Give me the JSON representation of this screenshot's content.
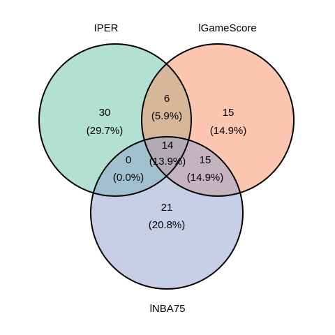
{
  "sets": [
    {
      "name": "IPER",
      "color": "#66c2a5"
    },
    {
      "name": "lGameScore",
      "color": "#fc8d62"
    },
    {
      "name": "lNBA75",
      "color": "#8da0cb"
    }
  ],
  "regions": [
    {
      "id": "iper-only",
      "count": "30",
      "percent": "(29.7%)"
    },
    {
      "id": "iper-gamescore",
      "count": "6",
      "percent": "(5.9%)"
    },
    {
      "id": "gamescore-only",
      "count": "15",
      "percent": "(14.9%)"
    },
    {
      "id": "all-three",
      "count": "14",
      "percent": "(13.9%)"
    },
    {
      "id": "iper-nba75",
      "count": "0",
      "percent": "(0.0%)"
    },
    {
      "id": "gamescore-nba75",
      "count": "15",
      "percent": "(14.9%)"
    },
    {
      "id": "nba75-only",
      "count": "21",
      "percent": "(20.8%)"
    }
  ]
}
